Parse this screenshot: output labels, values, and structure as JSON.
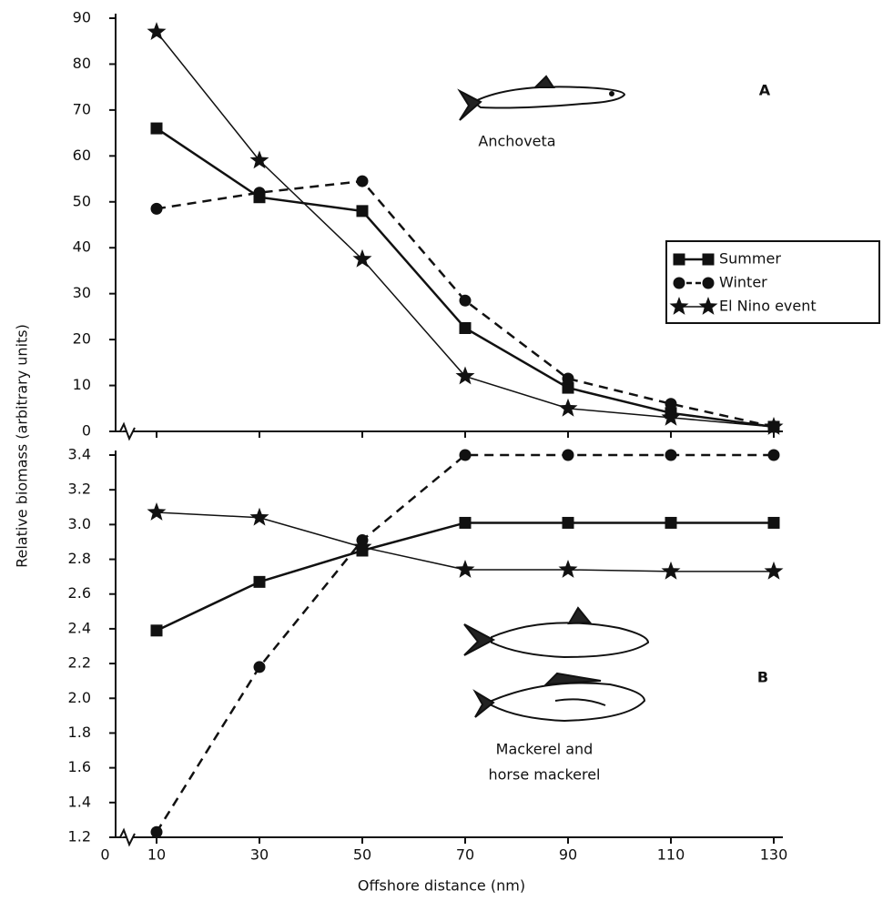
{
  "chart_data": [
    {
      "type": "line",
      "panel_label": "A",
      "annotation": "Anchoveta",
      "ylabel": "Relative biomass (arbitrary units)",
      "x": [
        10,
        30,
        50,
        70,
        90,
        110,
        130
      ],
      "xlim": [
        0,
        130
      ],
      "ylim": [
        0,
        90
      ],
      "yticks": [
        0,
        10,
        20,
        30,
        40,
        50,
        60,
        70,
        80,
        90
      ],
      "legend": "right",
      "series": [
        {
          "name": "Summer",
          "color": "#111111",
          "marker": "square",
          "dash": "solid",
          "values": [
            66,
            51,
            48,
            22.5,
            9.5,
            4,
            1
          ]
        },
        {
          "name": "Winter",
          "color": "#111111",
          "marker": "circle",
          "dash": "dashed",
          "values": [
            48.5,
            52,
            54.5,
            28.5,
            11.5,
            6,
            1
          ]
        },
        {
          "name": "El Nino event",
          "color": "#111111",
          "marker": "star",
          "dash": "thin",
          "values": [
            87,
            59,
            37.5,
            12,
            5,
            3,
            1
          ]
        }
      ]
    },
    {
      "type": "line",
      "panel_label": "B",
      "annotation": [
        "Mackerel and",
        "horse mackerel"
      ],
      "xlabel": "Offshore distance (nm)",
      "x": [
        10,
        30,
        50,
        70,
        90,
        110,
        130
      ],
      "xlim": [
        0,
        130
      ],
      "xticks": [
        0,
        10,
        30,
        50,
        70,
        90,
        110,
        130
      ],
      "ylim": [
        1.2,
        3.4
      ],
      "yticks": [
        1.2,
        1.4,
        1.6,
        1.8,
        {
          "value": 2,
          "label": "2.0"
        },
        2.2,
        2.4,
        2.6,
        2.8,
        {
          "value": 3,
          "label": "3.0"
        },
        3.2,
        3.4
      ],
      "series": [
        {
          "color": "#111111",
          "marker": "square",
          "dash": "solid",
          "values": [
            2.39,
            2.67,
            2.85,
            3.01,
            3.01,
            3.01,
            3.01
          ]
        },
        {
          "color": "#111111",
          "marker": "circle",
          "dash": "dashed",
          "values": [
            1.23,
            2.18,
            2.91,
            3.4,
            3.4,
            3.4,
            3.4
          ]
        },
        {
          "color": "#111111",
          "marker": "star",
          "dash": "thin",
          "values": [
            3.07,
            3.04,
            2.87,
            2.74,
            2.74,
            2.73,
            2.73
          ]
        }
      ]
    }
  ]
}
